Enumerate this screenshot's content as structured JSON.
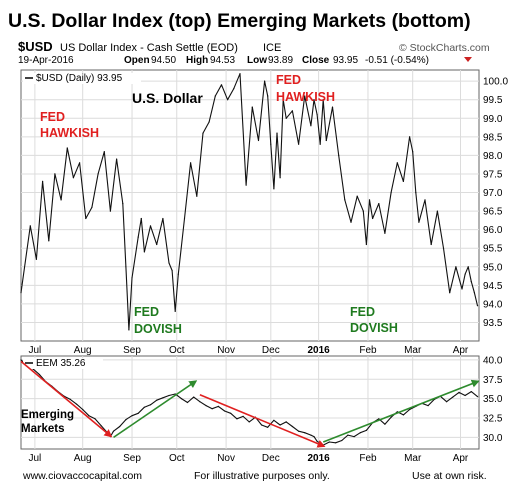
{
  "header": {
    "title": "U.S. Dollar Index (top) Emerging Markets (bottom)",
    "symbol": "$USD",
    "description": "US Dollar Index - Cash Settle (EOD)",
    "exchange": "ICE",
    "copyright": "© StockCharts.com",
    "date": "19-Apr-2016",
    "quote": {
      "open_label": "Open",
      "open": "94.50",
      "high_label": "High",
      "high": "94.53",
      "low_label": "Low",
      "low": "93.89",
      "close_label": "Close",
      "close": "93.95",
      "change": "-0.51 (-0.54%)"
    }
  },
  "footer": {
    "left": "www.ciovaccocapital.com",
    "center": "For illustrative purposes only.",
    "right": "Use at own risk."
  },
  "colors": {
    "price_line": "#111111",
    "fed_hawkish": "#e02020",
    "fed_dovish": "#1f7a1f",
    "red_arrow": "#e02020",
    "green_arrow": "#2e8b2e",
    "grid": "#dcdcdc",
    "frame": "#666666"
  },
  "chart_data": [
    {
      "type": "line",
      "legend": "$USD (Daily) 93.95",
      "panel_label": "U.S. Dollar",
      "ylim": [
        93.0,
        100.3
      ],
      "yticks": [
        93.5,
        94.0,
        94.5,
        95.0,
        95.5,
        96.0,
        96.5,
        97.0,
        97.5,
        98.0,
        98.5,
        99.0,
        99.5,
        100.0
      ],
      "x_domain": [
        0,
        297
      ],
      "xticks": [
        {
          "label": "Jul",
          "x": 9,
          "bold": false
        },
        {
          "label": "Aug",
          "x": 40,
          "bold": false
        },
        {
          "label": "Sep",
          "x": 72,
          "bold": false
        },
        {
          "label": "Oct",
          "x": 101,
          "bold": false
        },
        {
          "label": "Nov",
          "x": 133,
          "bold": false
        },
        {
          "label": "Dec",
          "x": 162,
          "bold": false
        },
        {
          "label": "2016",
          "x": 193,
          "bold": true
        },
        {
          "label": "Feb",
          "x": 225,
          "bold": false
        },
        {
          "label": "Mar",
          "x": 254,
          "bold": false
        },
        {
          "label": "Apr",
          "x": 285,
          "bold": false
        }
      ],
      "x": [
        0,
        6,
        10,
        14,
        18,
        22,
        26,
        30,
        34,
        38,
        42,
        46,
        50,
        54,
        58,
        62,
        66,
        68,
        70,
        72,
        76,
        78,
        80,
        84,
        88,
        92,
        96,
        98,
        100,
        102,
        106,
        110,
        114,
        118,
        122,
        126,
        130,
        134,
        138,
        142,
        146,
        150,
        154,
        158,
        160,
        162,
        164,
        166,
        168,
        170,
        172,
        176,
        180,
        184,
        188,
        190,
        192,
        194,
        196,
        198,
        202,
        206,
        210,
        214,
        218,
        222,
        224,
        226,
        228,
        232,
        236,
        240,
        244,
        248,
        252,
        254,
        256,
        258,
        262,
        266,
        270,
        274,
        278,
        282,
        286,
        288,
        290,
        292,
        294,
        296
      ],
      "y": [
        94.3,
        96.1,
        95.2,
        97.3,
        95.7,
        97.5,
        96.8,
        98.2,
        97.4,
        97.8,
        96.3,
        96.6,
        97.5,
        98.1,
        96.5,
        97.9,
        96.7,
        95.0,
        93.3,
        94.7,
        95.8,
        96.3,
        95.4,
        96.1,
        95.6,
        96.3,
        95.1,
        94.9,
        93.8,
        94.8,
        96.3,
        97.8,
        96.9,
        98.6,
        98.9,
        99.6,
        99.9,
        99.5,
        99.8,
        100.2,
        97.2,
        99.3,
        98.4,
        100.0,
        99.6,
        98.3,
        97.1,
        98.6,
        97.4,
        99.5,
        99.0,
        99.2,
        98.3,
        99.6,
        98.8,
        99.5,
        99.1,
        98.3,
        99.5,
        98.4,
        99.3,
        98.0,
        96.8,
        96.2,
        96.9,
        96.5,
        95.6,
        96.8,
        96.3,
        96.7,
        95.9,
        97.0,
        97.8,
        97.3,
        98.5,
        98.1,
        97.0,
        96.2,
        96.8,
        95.6,
        96.5,
        95.5,
        94.3,
        95.0,
        94.4,
        94.8,
        95.0,
        94.6,
        94.3,
        93.95
      ]
    },
    {
      "type": "line",
      "legend": "EEM 35.26",
      "ylim": [
        28.5,
        40.5
      ],
      "yticks": [
        30.0,
        32.5,
        35.0,
        37.5,
        40.0
      ],
      "x_domain": [
        0,
        297
      ],
      "xticks": [
        {
          "label": "Jul",
          "x": 9,
          "bold": false
        },
        {
          "label": "Aug",
          "x": 40,
          "bold": false
        },
        {
          "label": "Sep",
          "x": 72,
          "bold": false
        },
        {
          "label": "Oct",
          "x": 101,
          "bold": false
        },
        {
          "label": "Nov",
          "x": 133,
          "bold": false
        },
        {
          "label": "Dec",
          "x": 162,
          "bold": false
        },
        {
          "label": "2016",
          "x": 193,
          "bold": true
        },
        {
          "label": "Feb",
          "x": 225,
          "bold": false
        },
        {
          "label": "Mar",
          "x": 254,
          "bold": false
        },
        {
          "label": "Apr",
          "x": 285,
          "bold": false
        }
      ],
      "x": [
        0,
        4,
        8,
        12,
        16,
        20,
        24,
        28,
        32,
        36,
        40,
        44,
        48,
        52,
        56,
        58,
        60,
        64,
        68,
        72,
        76,
        80,
        84,
        88,
        92,
        96,
        100,
        104,
        108,
        112,
        116,
        120,
        124,
        128,
        132,
        136,
        140,
        144,
        148,
        152,
        156,
        160,
        164,
        168,
        172,
        176,
        180,
        184,
        188,
        190,
        192,
        196,
        200,
        204,
        208,
        212,
        216,
        220,
        224,
        228,
        232,
        236,
        240,
        244,
        248,
        252,
        256,
        260,
        264,
        268,
        272,
        276,
        280,
        284,
        288,
        292,
        296
      ],
      "y": [
        40.0,
        39.3,
        38.8,
        38.1,
        37.2,
        36.6,
        35.9,
        35.3,
        34.9,
        34.3,
        33.6,
        32.8,
        32.4,
        31.5,
        30.6,
        30.1,
        30.8,
        31.4,
        32.3,
        32.8,
        33.1,
        33.9,
        34.2,
        34.8,
        35.1,
        35.4,
        35.6,
        35.0,
        34.5,
        35.2,
        34.6,
        34.1,
        33.7,
        34.0,
        33.4,
        33.1,
        32.4,
        32.7,
        32.0,
        32.6,
        31.6,
        31.3,
        32.2,
        31.6,
        32.0,
        31.4,
        30.8,
        30.6,
        30.3,
        30.1,
        29.5,
        29.0,
        29.4,
        29.3,
        29.6,
        30.3,
        30.1,
        30.6,
        30.9,
        31.9,
        32.4,
        31.7,
        32.6,
        33.3,
        32.9,
        33.6,
        34.0,
        34.4,
        34.1,
        34.9,
        35.3,
        34.6,
        35.2,
        35.8,
        35.4,
        35.9,
        35.26
      ]
    }
  ],
  "annotations": {
    "top": [
      {
        "id": "fed-hawkish-1",
        "lines": [
          "FED",
          "HAWKISH"
        ],
        "color_key": "fed_hawkish"
      },
      {
        "id": "fed-hawkish-2",
        "lines": [
          "FED",
          "HAWKISH"
        ],
        "color_key": "fed_hawkish"
      },
      {
        "id": "fed-dovish-1",
        "lines": [
          "FED",
          "DOVISH"
        ],
        "color_key": "fed_dovish"
      },
      {
        "id": "fed-dovish-2",
        "lines": [
          "FED",
          "DOVISH"
        ],
        "color_key": "fed_dovish"
      }
    ],
    "bottom": {
      "label_lines": [
        "Emerging",
        "Markets"
      ],
      "arrows": [
        {
          "id": "red-arrow-1",
          "color_key": "red_arrow",
          "from": [
            0,
            39.8
          ],
          "to": [
            58,
            30.2
          ]
        },
        {
          "id": "green-arrow-1",
          "color_key": "green_arrow",
          "from": [
            60,
            30.0
          ],
          "to": [
            113,
            37.2
          ]
        },
        {
          "id": "red-arrow-2",
          "color_key": "red_arrow",
          "from": [
            116,
            35.5
          ],
          "to": [
            196,
            28.9
          ]
        },
        {
          "id": "green-arrow-2",
          "color_key": "green_arrow",
          "from": [
            196,
            29.4
          ],
          "to": [
            296,
            37.2
          ]
        }
      ]
    }
  }
}
